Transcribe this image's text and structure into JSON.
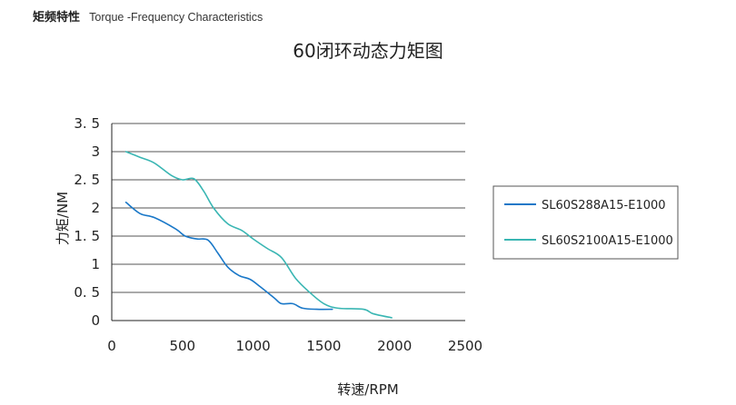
{
  "header": {
    "title_cn": "矩频特性",
    "title_en": "Torque -Frequency Characteristics"
  },
  "chart_data": {
    "type": "line",
    "title": "60闭环动态力矩图",
    "xlabel": "转速/RPM",
    "ylabel": "力矩/NM",
    "xlim": [
      0,
      2500
    ],
    "ylim": [
      0,
      3.5
    ],
    "xticks": [
      0,
      500,
      1000,
      1500,
      2000,
      2500
    ],
    "yticks": [
      0,
      0.5,
      1,
      1.5,
      2,
      2.5,
      3,
      3.5
    ],
    "ytick_labels": [
      "0",
      "0. 5",
      "1",
      "1. 5",
      "2",
      "2. 5",
      "3",
      "3. 5"
    ],
    "grid": "horizontal",
    "legend": "right",
    "series": [
      {
        "name": "SL60S288A15-E1000",
        "color": "#1a78c8",
        "points": [
          [
            100,
            2.1
          ],
          [
            200,
            1.9
          ],
          [
            300,
            1.83
          ],
          [
            450,
            1.63
          ],
          [
            520,
            1.5
          ],
          [
            600,
            1.45
          ],
          [
            680,
            1.43
          ],
          [
            750,
            1.2
          ],
          [
            820,
            0.95
          ],
          [
            900,
            0.8
          ],
          [
            980,
            0.73
          ],
          [
            1050,
            0.6
          ],
          [
            1150,
            0.4
          ],
          [
            1200,
            0.3
          ],
          [
            1280,
            0.3
          ],
          [
            1350,
            0.22
          ],
          [
            1450,
            0.2
          ],
          [
            1560,
            0.2
          ]
        ]
      },
      {
        "name": "SL60S2100A15-E1000",
        "color": "#3ab6b3",
        "points": [
          [
            100,
            3.0
          ],
          [
            200,
            2.9
          ],
          [
            300,
            2.8
          ],
          [
            420,
            2.58
          ],
          [
            500,
            2.5
          ],
          [
            580,
            2.52
          ],
          [
            650,
            2.3
          ],
          [
            720,
            2.0
          ],
          [
            820,
            1.72
          ],
          [
            920,
            1.6
          ],
          [
            1000,
            1.45
          ],
          [
            1100,
            1.28
          ],
          [
            1200,
            1.12
          ],
          [
            1300,
            0.75
          ],
          [
            1400,
            0.5
          ],
          [
            1500,
            0.3
          ],
          [
            1600,
            0.22
          ],
          [
            1780,
            0.2
          ],
          [
            1850,
            0.12
          ],
          [
            1980,
            0.05
          ]
        ]
      }
    ]
  }
}
